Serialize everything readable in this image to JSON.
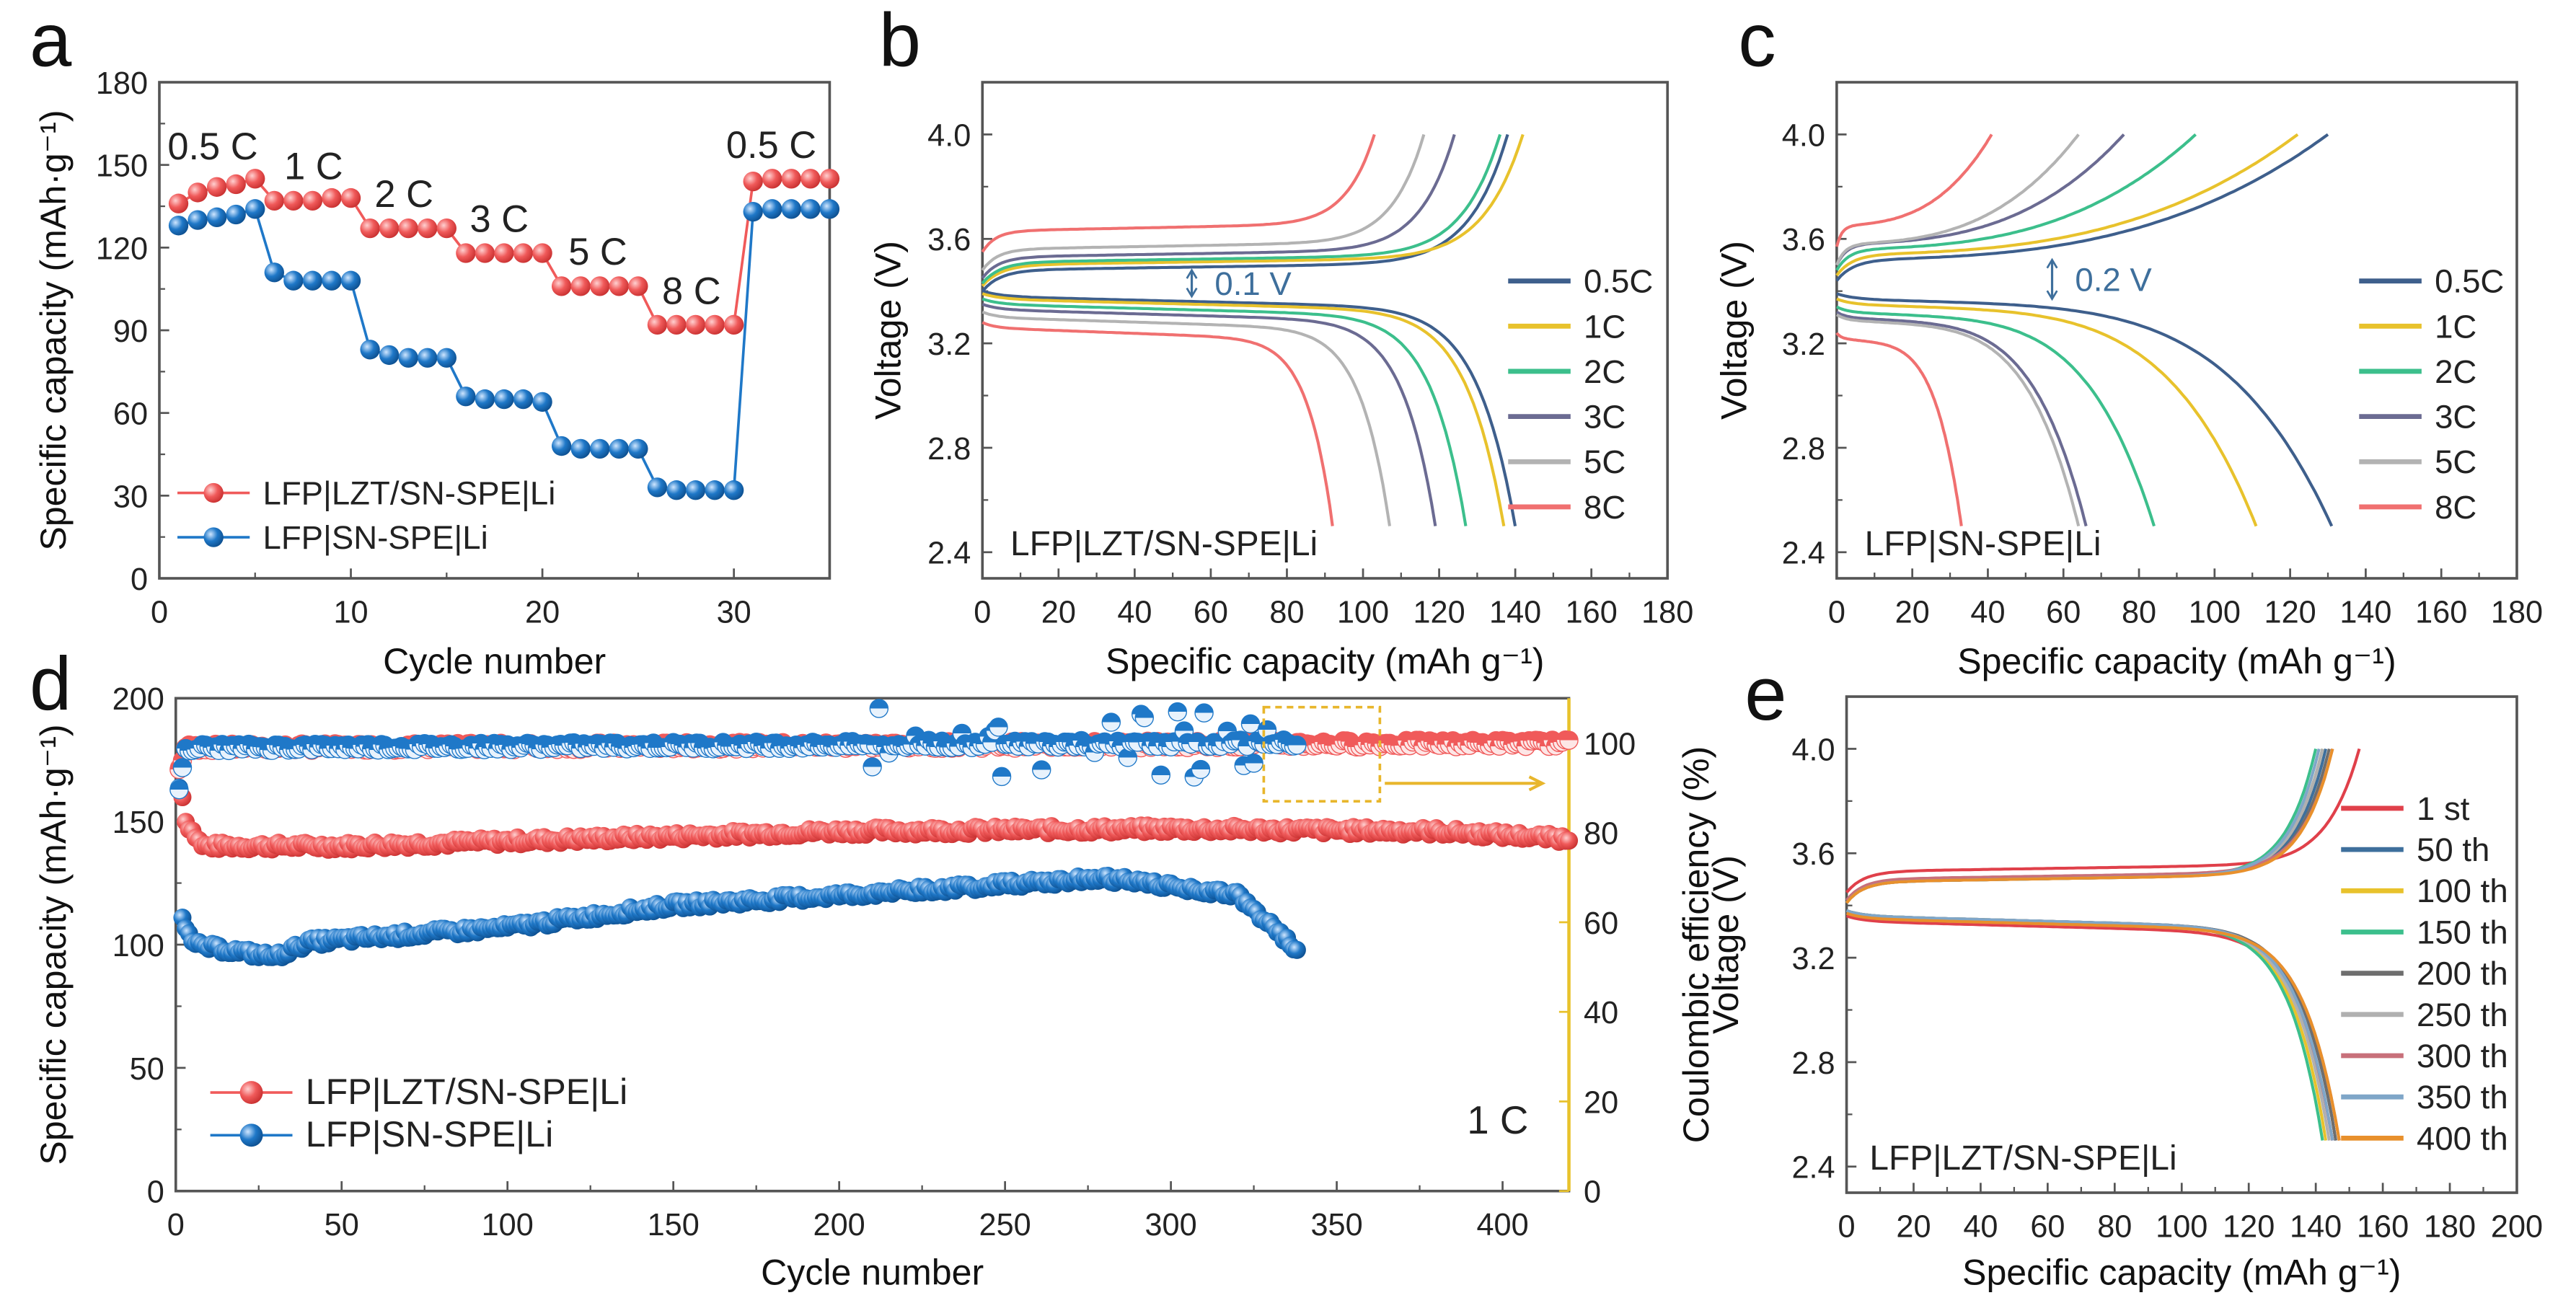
{
  "chart_data": [
    {
      "panel": "a",
      "type": "line",
      "xlabel": "Cycle number",
      "ylabel": "Specific capacity (mAh·g⁻¹)",
      "xlim": [
        0,
        35
      ],
      "ylim": [
        0,
        180
      ],
      "xticks": [
        "0",
        "10",
        "20",
        "30"
      ],
      "yticks": [
        "0",
        "30",
        "60",
        "90",
        "120",
        "150",
        "180"
      ],
      "rate_labels": [
        "0.5 C",
        "1 C",
        "2 C",
        "3 C",
        "5 C",
        "8 C",
        "0.5 C"
      ],
      "series": [
        {
          "name": "LFP|LZT/SN-SPE|Li",
          "color": "#f05a5a",
          "x": [
            1,
            2,
            3,
            4,
            5,
            6,
            7,
            8,
            9,
            10,
            11,
            12,
            13,
            14,
            15,
            16,
            17,
            18,
            19,
            20,
            21,
            22,
            23,
            24,
            25,
            26,
            27,
            28,
            29,
            30,
            31,
            32,
            33,
            34,
            35
          ],
          "values": [
            136,
            140,
            142,
            143,
            145,
            137,
            137,
            137,
            138,
            138,
            127,
            127,
            127,
            127,
            127,
            118,
            118,
            118,
            118,
            118,
            106,
            106,
            106,
            106,
            106,
            92,
            92,
            92,
            92,
            92,
            144,
            145,
            145,
            145,
            145
          ]
        },
        {
          "name": "LFP|SN-SPE|Li",
          "color": "#1f78c8",
          "x": [
            1,
            2,
            3,
            4,
            5,
            6,
            7,
            8,
            9,
            10,
            11,
            12,
            13,
            14,
            15,
            16,
            17,
            18,
            19,
            20,
            21,
            22,
            23,
            24,
            25,
            26,
            27,
            28,
            29,
            30,
            31,
            32,
            33,
            34,
            35
          ],
          "values": [
            128,
            130,
            131,
            132,
            134,
            111,
            108,
            108,
            108,
            108,
            83,
            81,
            80,
            80,
            80,
            66,
            65,
            65,
            65,
            64,
            48,
            47,
            47,
            47,
            47,
            33,
            32,
            32,
            32,
            32,
            133,
            134,
            134,
            134,
            134
          ]
        }
      ]
    },
    {
      "panel": "b",
      "type": "line",
      "xlabel": "Specific capacity (mAh g⁻¹)",
      "ylabel": "Voltage (V)",
      "xlim": [
        0,
        180
      ],
      "ylim": [
        2.3,
        4.2
      ],
      "xticks": [
        "0",
        "20",
        "40",
        "60",
        "80",
        "100",
        "120",
        "140",
        "160",
        "180"
      ],
      "yticks": [
        "2.4",
        "2.8",
        "3.2",
        "3.6",
        "4.0"
      ],
      "cell_label": "LFP|LZT/SN-SPE|Li",
      "annotation": "0.1 V",
      "series": [
        {
          "name": "0.5C",
          "color": "#3e5f8c",
          "charge_capacity": 138,
          "discharge_capacity": 140,
          "charge_plateau_v": 3.48,
          "discharge_plateau_v": 3.38
        },
        {
          "name": "1C",
          "color": "#e8c22c",
          "charge_capacity": 142,
          "discharge_capacity": 137,
          "charge_plateau_v": 3.5,
          "discharge_plateau_v": 3.37
        },
        {
          "name": "2C",
          "color": "#3cbf8c",
          "charge_capacity": 136,
          "discharge_capacity": 127,
          "charge_plateau_v": 3.51,
          "discharge_plateau_v": 3.35
        },
        {
          "name": "3C",
          "color": "#6b6b92",
          "charge_capacity": 124,
          "discharge_capacity": 119,
          "charge_plateau_v": 3.53,
          "discharge_plateau_v": 3.33
        },
        {
          "name": "5C",
          "color": "#b3b3b3",
          "charge_capacity": 116,
          "discharge_capacity": 107,
          "charge_plateau_v": 3.56,
          "discharge_plateau_v": 3.3
        },
        {
          "name": "8C",
          "color": "#f07070",
          "charge_capacity": 103,
          "discharge_capacity": 92,
          "charge_plateau_v": 3.63,
          "discharge_plateau_v": 3.26
        }
      ]
    },
    {
      "panel": "c",
      "type": "line",
      "xlabel": "Specific capacity (mAh g⁻¹)",
      "ylabel": "Voltage (V)",
      "xlim": [
        0,
        180
      ],
      "ylim": [
        2.3,
        4.2
      ],
      "xticks": [
        "0",
        "20",
        "40",
        "60",
        "80",
        "100",
        "120",
        "140",
        "160",
        "180"
      ],
      "yticks": [
        "2.4",
        "2.8",
        "3.2",
        "3.6",
        "4.0"
      ],
      "cell_label": "LFP|SN-SPE|Li",
      "annotation": "0.2 V",
      "series": [
        {
          "name": "0.5C",
          "color": "#3e5f8c",
          "charge_capacity": 130,
          "discharge_capacity": 131,
          "charge_plateau_v": 3.52,
          "discharge_plateau_v": 3.37
        },
        {
          "name": "1C",
          "color": "#e8c22c",
          "charge_capacity": 122,
          "discharge_capacity": 111,
          "charge_plateau_v": 3.54,
          "discharge_plateau_v": 3.35
        },
        {
          "name": "2C",
          "color": "#3cbf8c",
          "charge_capacity": 95,
          "discharge_capacity": 84,
          "charge_plateau_v": 3.56,
          "discharge_plateau_v": 3.32
        },
        {
          "name": "3C",
          "color": "#6b6b92",
          "charge_capacity": 76,
          "discharge_capacity": 66,
          "charge_plateau_v": 3.58,
          "discharge_plateau_v": 3.3
        },
        {
          "name": "5C",
          "color": "#b3b3b3",
          "charge_capacity": 64,
          "discharge_capacity": 64,
          "charge_plateau_v": 3.58,
          "discharge_plateau_v": 3.29
        },
        {
          "name": "8C",
          "color": "#f07070",
          "charge_capacity": 41,
          "discharge_capacity": 33,
          "charge_plateau_v": 3.65,
          "discharge_plateau_v": 3.22
        }
      ]
    },
    {
      "panel": "d",
      "type": "scatter",
      "xlabel": "Cycle number",
      "ylabel": "Specific capacity (mAh·g⁻¹)",
      "ylabel_right": "Coulombic efficiency (%)",
      "xlim": [
        0,
        420
      ],
      "ylim": [
        0,
        200
      ],
      "ylim_right": [
        0,
        110
      ],
      "xticks": [
        "0",
        "50",
        "100",
        "150",
        "200",
        "250",
        "300",
        "350",
        "400"
      ],
      "yticks": [
        "0",
        "50",
        "100",
        "150",
        "200"
      ],
      "yticks_right": [
        "0",
        "20",
        "40",
        "60",
        "80",
        "100"
      ],
      "rate_label": "1 C",
      "highlight_box_cycles": [
        328,
        363
      ],
      "highlight_box_ce": [
        87,
        108
      ],
      "axis_color_right": "#e8c22c",
      "series": [
        {
          "name": "LFP|LZT/SN-SPE|Li",
          "color": "#f05a5a",
          "cycles": 420,
          "capacity_keypoints": [
            [
              1,
              172
            ],
            [
              3,
              150
            ],
            [
              8,
              140
            ],
            [
              50,
              140
            ],
            [
              100,
              142
            ],
            [
              200,
              146
            ],
            [
              300,
              147
            ],
            [
              380,
              146
            ],
            [
              420,
              143
            ]
          ],
          "ce_keypoints": [
            [
              1,
              94
            ],
            [
              3,
              99
            ],
            [
              420,
              100
            ]
          ]
        },
        {
          "name": "LFP|SN-SPE|Li",
          "color": "#1f78c8",
          "cycles": 338,
          "capacity_keypoints": [
            [
              1,
              165
            ],
            [
              2,
              112
            ],
            [
              5,
              100
            ],
            [
              30,
              95
            ],
            [
              40,
              101
            ],
            [
              100,
              107
            ],
            [
              150,
              116
            ],
            [
              200,
              120
            ],
            [
              280,
              127
            ],
            [
              320,
              120
            ],
            [
              338,
              98
            ]
          ],
          "ce_keypoints": [
            [
              1,
              90
            ],
            [
              3,
              99
            ],
            [
              338,
              100
            ]
          ],
          "ce_scatter_range": [
            210,
            330
          ]
        }
      ]
    },
    {
      "panel": "e",
      "type": "line",
      "xlabel": "Specific capacity (mAh g⁻¹)",
      "ylabel": "Voltage (V)",
      "xlim": [
        0,
        200
      ],
      "ylim": [
        2.3,
        4.2
      ],
      "xticks": [
        "0",
        "20",
        "40",
        "60",
        "80",
        "100",
        "120",
        "140",
        "160",
        "180",
        "200"
      ],
      "yticks": [
        "2.4",
        "2.8",
        "3.2",
        "3.6",
        "4.0"
      ],
      "cell_label": "LFP|LZT/SN-SPE|Li",
      "series": [
        {
          "name": "1 st",
          "color": "#e0404a",
          "charge_capacity": 153,
          "discharge_capacity": 145,
          "charge_plateau_v": 3.53,
          "discharge_plateau_v": 3.34
        },
        {
          "name": "50 th",
          "color": "#3e6f9c",
          "charge_capacity": 143,
          "discharge_capacity": 146,
          "charge_plateau_v": 3.49,
          "discharge_plateau_v": 3.36
        },
        {
          "name": "100 th",
          "color": "#e8c22c",
          "charge_capacity": 142,
          "discharge_capacity": 143,
          "charge_plateau_v": 3.49,
          "discharge_plateau_v": 3.36
        },
        {
          "name": "150 th",
          "color": "#3cbf8c",
          "charge_capacity": 140,
          "discharge_capacity": 142,
          "charge_plateau_v": 3.49,
          "discharge_plateau_v": 3.36
        },
        {
          "name": "200 th",
          "color": "#6e6e6e",
          "charge_capacity": 144,
          "discharge_capacity": 146,
          "charge_plateau_v": 3.49,
          "discharge_plateau_v": 3.36
        },
        {
          "name": "250 th",
          "color": "#b0b0b0",
          "charge_capacity": 142,
          "discharge_capacity": 144,
          "charge_plateau_v": 3.49,
          "discharge_plateau_v": 3.36
        },
        {
          "name": "300 th",
          "color": "#c8707a",
          "charge_capacity": 145,
          "discharge_capacity": 147,
          "charge_plateau_v": 3.5,
          "discharge_plateau_v": 3.35
        },
        {
          "name": "350 th",
          "color": "#7fa6c8",
          "charge_capacity": 141,
          "discharge_capacity": 145,
          "charge_plateau_v": 3.49,
          "discharge_plateau_v": 3.36
        },
        {
          "name": "400 th",
          "color": "#e8902c",
          "charge_capacity": 145,
          "discharge_capacity": 147,
          "charge_plateau_v": 3.49,
          "discharge_plateau_v": 3.35
        }
      ]
    }
  ]
}
